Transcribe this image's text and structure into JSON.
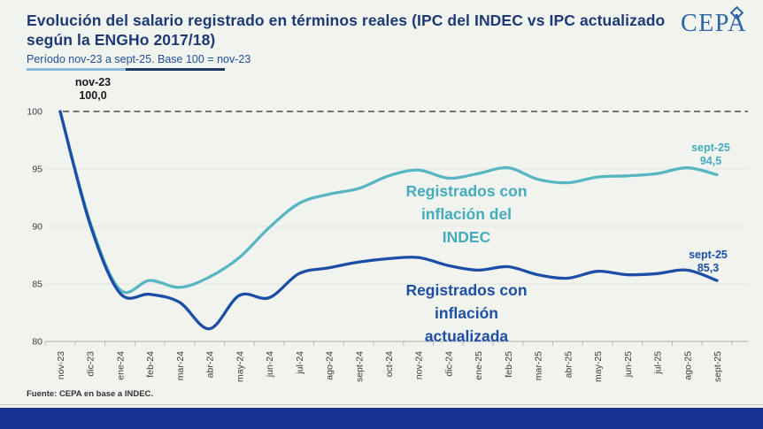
{
  "header": {
    "title_line1": "Evolución del salario registrado en términos reales (IPC del INDEC vs IPC actualizado",
    "title_line2": "según la ENGHo 2017/18)",
    "subtitle": "Período nov-23 a sept-25. Base 100 = nov-23",
    "logo_text": "CEPA"
  },
  "annotations": {
    "start_label": "nov-23",
    "start_value": "100,0",
    "indec_end_label": "sept-25",
    "indec_end_value": "94,5",
    "actualizada_end_label": "sept-25",
    "actualizada_end_value": "85,3",
    "indec_series_label": [
      "Registrados con",
      "inflación del",
      "INDEC"
    ],
    "actualizada_series_label": [
      "Registrados con",
      "inflación",
      "actualizada"
    ]
  },
  "footer": {
    "source": "Fuente: CEPA en base a INDEC."
  },
  "colors": {
    "background": "#f1f3ef",
    "title": "#1e3a76",
    "subtitle": "#1f4e9b",
    "teal_line": "#58b6c3",
    "navy_line": "#1c4ea6",
    "teal_text": "#45acbe",
    "navy_text": "#1d4fa5",
    "baseline_dash": "#4a4a4a",
    "grid": "#e3e6e1",
    "axis_line": "#b8bcb6",
    "axis_text": "#3d3d3d",
    "bottom_bar": "#16318f",
    "logo_blue": "#2e64a8"
  },
  "chart_data": {
    "type": "line",
    "title": "Evolución del salario registrado en términos reales (IPC del INDEC vs IPC actualizado según la ENGHo 2017/18)",
    "subtitle": "Período nov-23 a sept-25. Base 100 = nov-23",
    "xlabel": "",
    "ylabel": "",
    "ylim": [
      80,
      100
    ],
    "yticks": [
      100,
      95,
      90,
      85,
      80
    ],
    "baseline": 100,
    "grid": "faint-horizontal",
    "legend_position": "inline-labels",
    "categories": [
      "nov-23",
      "dic-23",
      "ene-24",
      "feb-24",
      "mar-24",
      "abr-24",
      "may-24",
      "jun-24",
      "jul-24",
      "ago-24",
      "sept-24",
      "oct-24",
      "nov-24",
      "dic-24",
      "ene-25",
      "feb-25",
      "mar-25",
      "abr-25",
      "may-25",
      "jun-25",
      "jul-25",
      "ago-25",
      "sept-25"
    ],
    "series": [
      {
        "name": "Registrados con inflación del INDEC",
        "color": "#58b6c3",
        "end_label": "sept-25 94,5",
        "values": [
          100.0,
          90.4,
          84.5,
          85.3,
          84.7,
          85.6,
          87.3,
          89.9,
          92.0,
          92.8,
          93.3,
          94.4,
          94.9,
          94.2,
          94.6,
          95.1,
          94.1,
          93.8,
          94.3,
          94.4,
          94.6,
          95.1,
          94.5
        ]
      },
      {
        "name": "Registrados con inflación actualizada",
        "color": "#1c4ea6",
        "end_label": "sept-25 85,3",
        "values": [
          100.0,
          90.2,
          84.2,
          84.1,
          83.4,
          81.1,
          84.0,
          83.8,
          85.9,
          86.4,
          86.9,
          87.2,
          87.3,
          86.6,
          86.2,
          86.5,
          85.8,
          85.5,
          86.1,
          85.8,
          85.9,
          86.2,
          85.3
        ]
      }
    ]
  }
}
